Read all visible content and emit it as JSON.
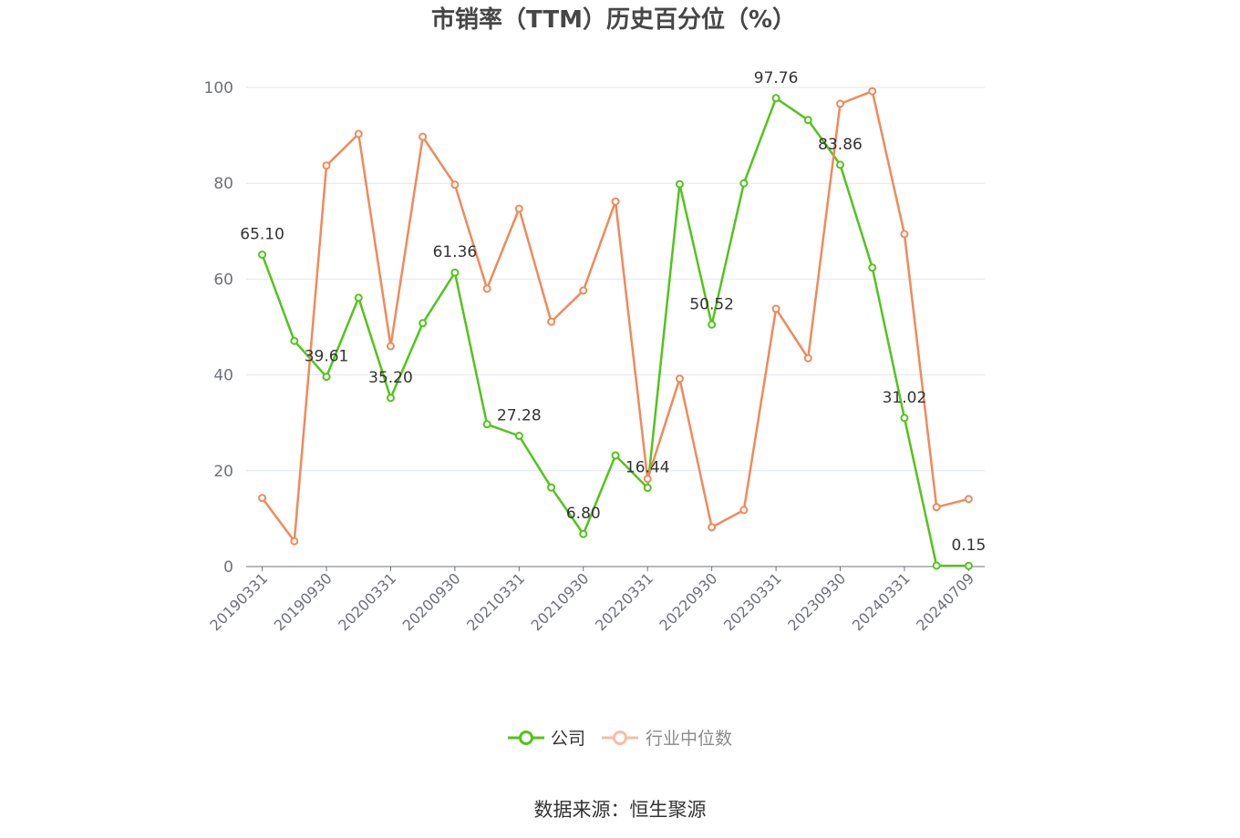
{
  "chart_data": {
    "type": "line",
    "title": "市销率（TTM）历史百分位（%）",
    "categories": [
      "20190331",
      "",
      "20190930",
      "",
      "20200331",
      "",
      "20200930",
      "",
      "20210331",
      "",
      "20210930",
      "",
      "20220331",
      "",
      "20220930",
      "",
      "20230331",
      "",
      "20230930",
      "",
      "20240331",
      "",
      "20240709"
    ],
    "ylim": [
      0,
      100
    ],
    "yticks": [
      0,
      20,
      40,
      60,
      80,
      100
    ],
    "grid": true,
    "legend": "bottom",
    "series": [
      {
        "name": "公司",
        "color": "#52c41a",
        "values": [
          65.1,
          47.1,
          39.61,
          56.1,
          35.2,
          50.8,
          61.36,
          29.7,
          27.28,
          16.5,
          6.8,
          23.2,
          16.44,
          79.8,
          50.52,
          80.0,
          97.76,
          93.2,
          83.86,
          62.4,
          31.02,
          0.2,
          0.15
        ],
        "data_labels": [
          "65.10",
          null,
          "39.61",
          null,
          "35.20",
          null,
          "61.36",
          null,
          "27.28",
          null,
          "6.80",
          null,
          "16.44",
          null,
          "50.52",
          null,
          "97.76",
          null,
          "83.86",
          null,
          "31.02",
          null,
          "0.15"
        ]
      },
      {
        "name": "行业中位数",
        "color": "#ef8a5a",
        "values": [
          14.3,
          5.3,
          83.7,
          90.3,
          46.0,
          89.7,
          79.7,
          58.0,
          74.7,
          51.1,
          57.6,
          76.2,
          18.3,
          39.2,
          8.2,
          11.8,
          53.8,
          43.5,
          96.6,
          99.2,
          69.4,
          12.4,
          14.1
        ]
      }
    ]
  },
  "source": "数据来源：恒生聚源"
}
